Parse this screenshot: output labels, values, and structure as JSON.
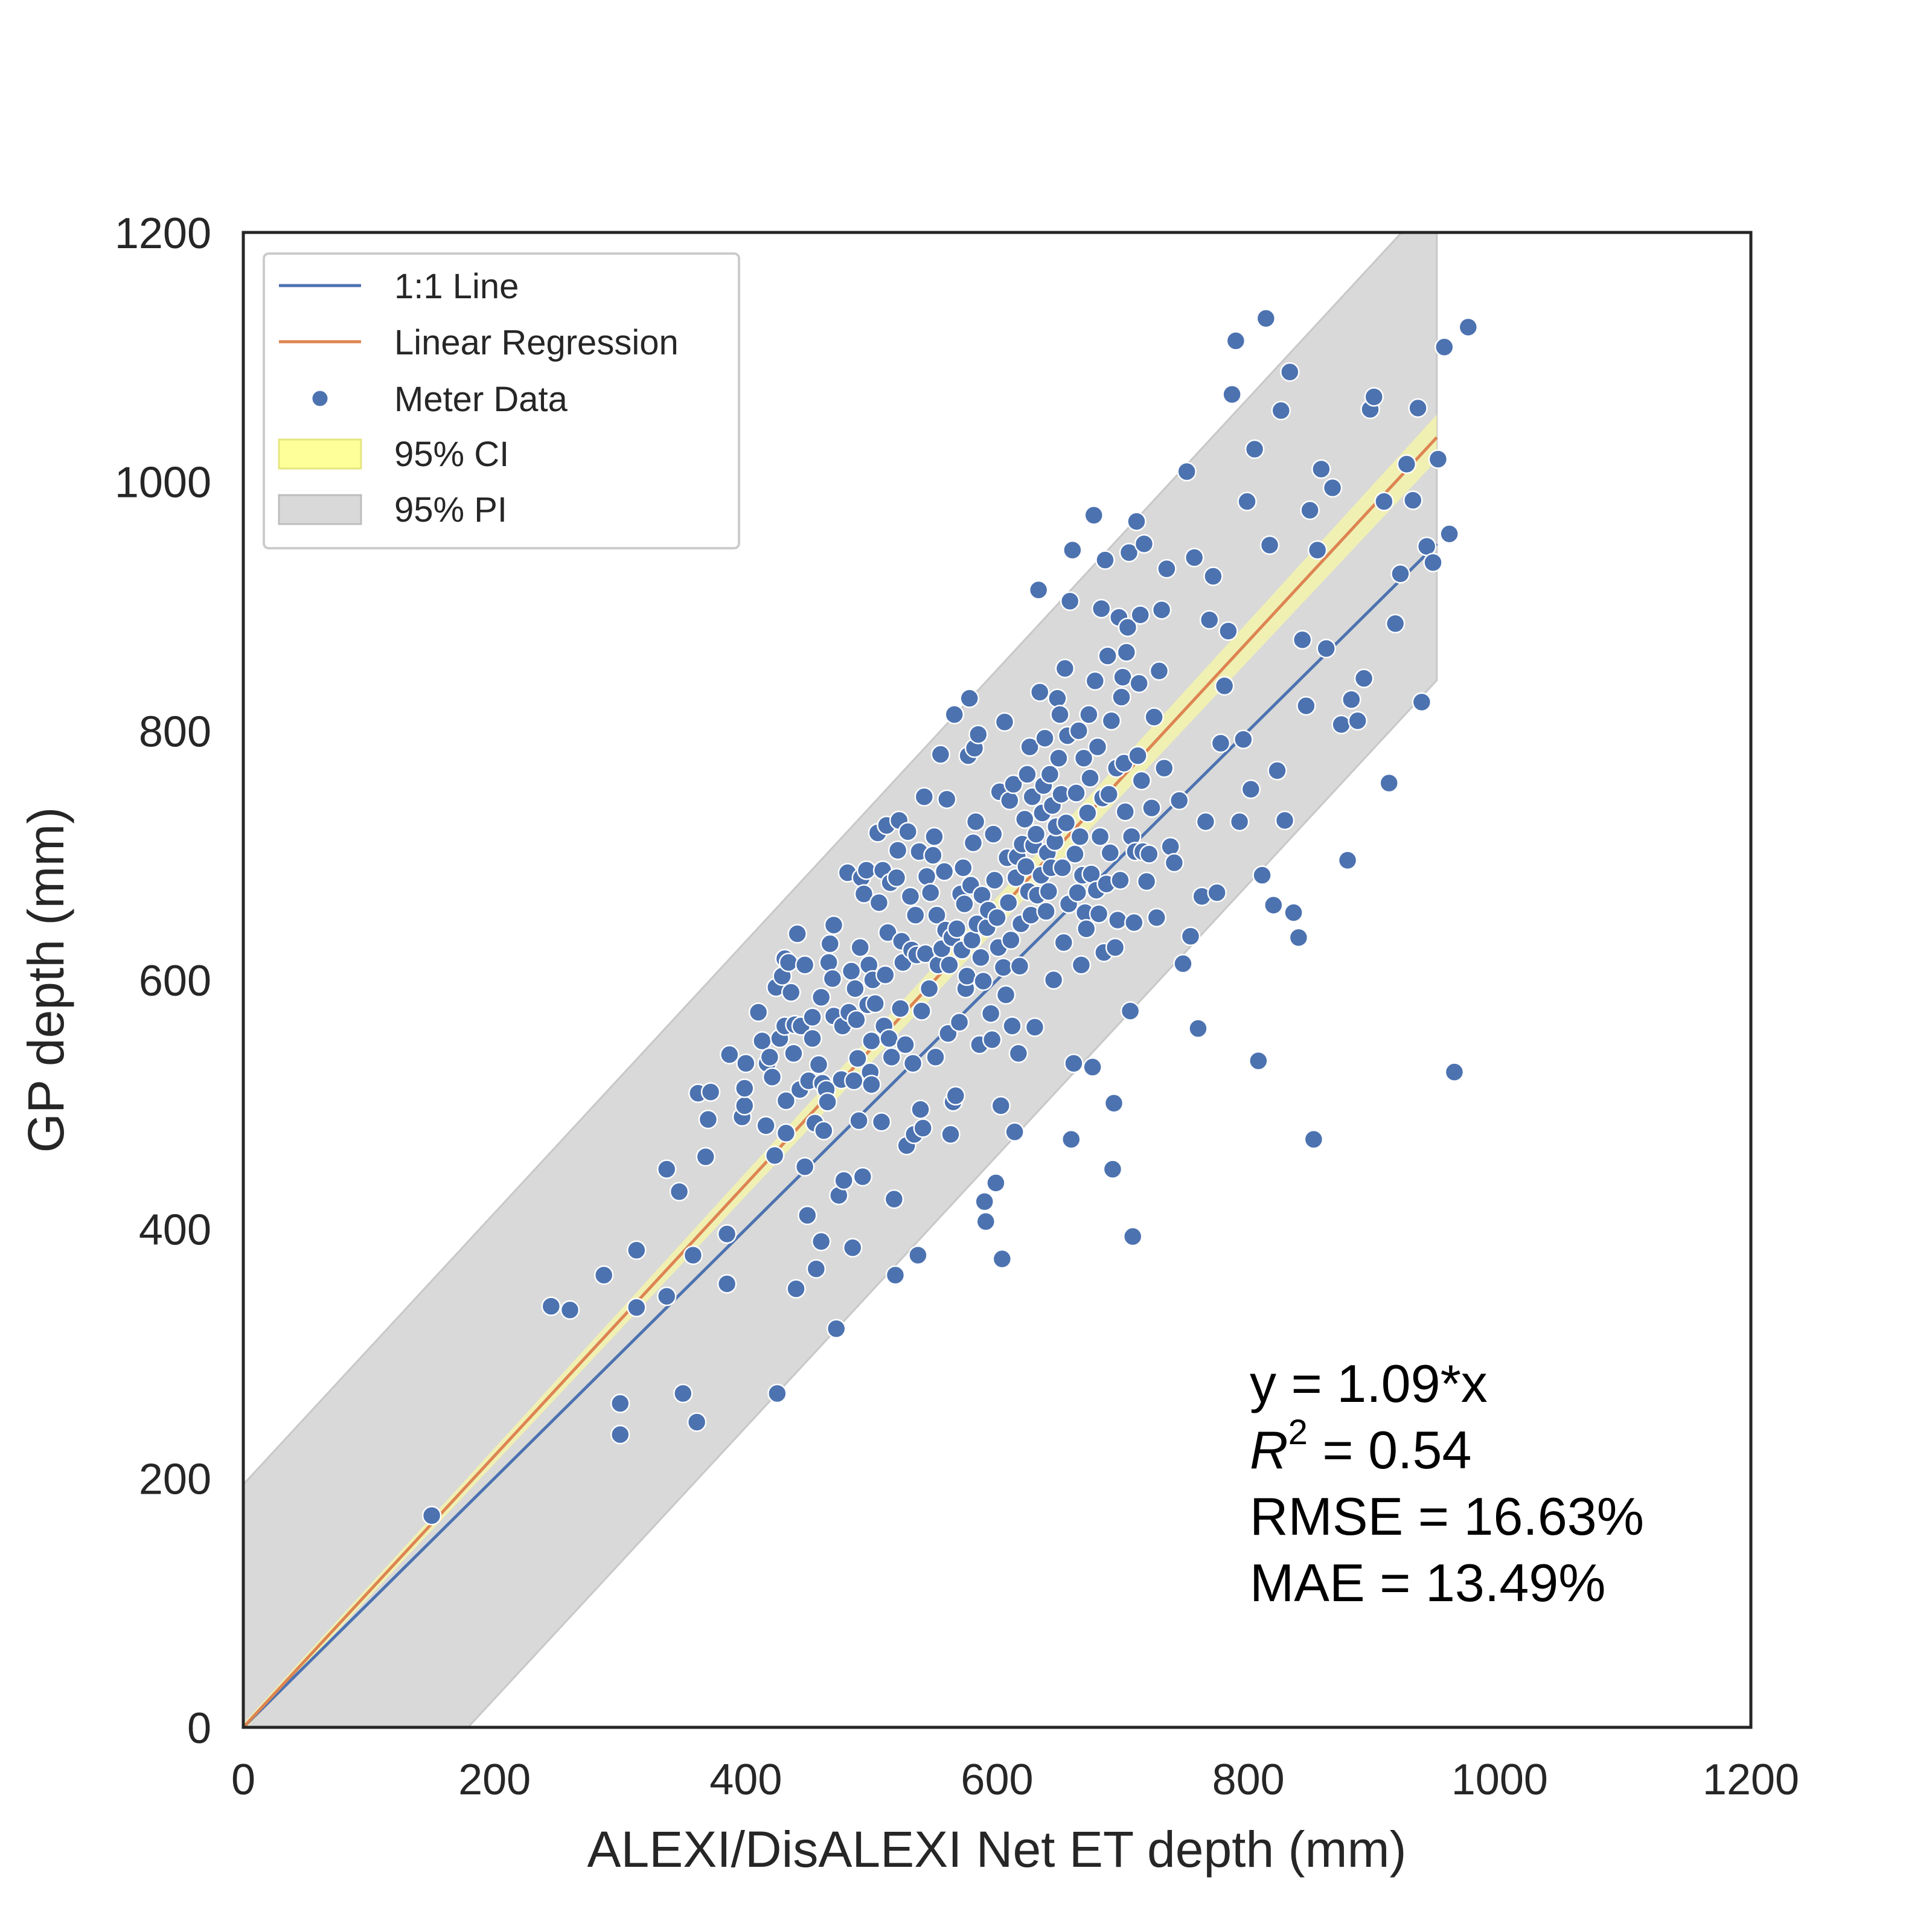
{
  "chart_data": {
    "type": "scatter",
    "xlabel": "ALEXI/DisALEXI Net ET depth (mm)",
    "ylabel": "GP depth (mm)",
    "xlim": [
      0,
      1200
    ],
    "ylim": [
      0,
      1200
    ],
    "xticks": [
      "0",
      "200",
      "400",
      "600",
      "800",
      "1000",
      "1200"
    ],
    "yticks": [
      "0",
      "200",
      "400",
      "600",
      "800",
      "1000",
      "1200"
    ],
    "grid": false,
    "legend": {
      "placement": "top-left",
      "entries": [
        "1:1 Line",
        "Linear Regression",
        "Meter Data",
        "95% CI",
        "95% PI"
      ]
    },
    "colors": {
      "one_to_one": "#4c72b0",
      "regression": "#dd8452",
      "points": "#4c72b0",
      "ci": "#ffff99",
      "pi": "#d9d9d9"
    },
    "one_to_one_line": {
      "x": [
        0,
        950
      ],
      "y": [
        0,
        950
      ]
    },
    "regression_line": {
      "slope": 1.09,
      "x": [
        0,
        950
      ]
    },
    "prediction_interval_halfwidth": 195,
    "annotations": {
      "equation": "y = 1.09*x",
      "r2_prefix": "R",
      "r2_sup": "2",
      "r2_value": " = 0.54",
      "rmse": "RMSE = 16.63%",
      "mae": "MAE = 13.49%"
    },
    "points": [
      [
        150,
        170
      ],
      [
        245,
        338
      ],
      [
        260,
        335
      ],
      [
        287,
        363
      ],
      [
        300,
        260
      ],
      [
        300,
        235
      ],
      [
        313,
        383
      ],
      [
        313,
        337
      ],
      [
        337,
        448
      ],
      [
        337,
        346
      ],
      [
        347,
        430
      ],
      [
        350,
        268
      ],
      [
        358,
        379
      ],
      [
        361,
        245
      ],
      [
        362,
        509
      ],
      [
        368,
        458
      ],
      [
        370,
        488
      ],
      [
        372,
        510
      ],
      [
        385,
        396
      ],
      [
        385,
        356
      ],
      [
        387,
        540
      ],
      [
        397,
        490
      ],
      [
        399,
        499
      ],
      [
        399,
        513
      ],
      [
        400,
        533
      ],
      [
        410,
        574
      ],
      [
        413,
        551
      ],
      [
        416,
        483
      ],
      [
        417,
        533
      ],
      [
        419,
        538
      ],
      [
        421,
        522
      ],
      [
        423,
        459
      ],
      [
        424,
        594
      ],
      [
        425,
        268
      ],
      [
        427,
        553
      ],
      [
        429,
        603
      ],
      [
        431,
        617
      ],
      [
        431,
        563
      ],
      [
        432,
        503
      ],
      [
        432,
        477
      ],
      [
        434,
        614
      ],
      [
        436,
        590
      ],
      [
        438,
        541
      ],
      [
        439,
        564
      ],
      [
        440,
        352
      ],
      [
        441,
        637
      ],
      [
        443,
        512
      ],
      [
        444,
        563
      ],
      [
        447,
        450
      ],
      [
        447,
        612
      ],
      [
        449,
        411
      ],
      [
        450,
        519
      ],
      [
        453,
        570
      ],
      [
        453,
        553
      ],
      [
        455,
        485
      ],
      [
        456,
        368
      ],
      [
        458,
        532
      ],
      [
        460,
        586
      ],
      [
        460,
        390
      ],
      [
        461,
        517
      ],
      [
        462,
        479
      ],
      [
        464,
        512
      ],
      [
        465,
        502
      ],
      [
        466,
        614
      ],
      [
        467,
        629
      ],
      [
        469,
        601
      ],
      [
        470,
        644
      ],
      [
        470,
        571
      ],
      [
        472,
        320
      ],
      [
        474,
        427
      ],
      [
        476,
        520
      ],
      [
        477,
        563
      ],
      [
        478,
        439
      ],
      [
        481,
        686
      ],
      [
        482,
        574
      ],
      [
        484,
        607
      ],
      [
        485,
        385
      ],
      [
        486,
        519
      ],
      [
        487,
        593
      ],
      [
        488,
        568
      ],
      [
        489,
        537
      ],
      [
        490,
        487
      ],
      [
        491,
        626
      ],
      [
        492,
        682
      ],
      [
        493,
        442
      ],
      [
        494,
        669
      ],
      [
        496,
        688
      ],
      [
        497,
        580
      ],
      [
        498,
        612
      ],
      [
        499,
        526
      ],
      [
        500,
        551
      ],
      [
        500,
        516
      ],
      [
        501,
        600
      ],
      [
        503,
        581
      ],
      [
        505,
        718
      ],
      [
        506,
        662
      ],
      [
        508,
        486
      ],
      [
        509,
        688
      ],
      [
        510,
        563
      ],
      [
        511,
        604
      ],
      [
        512,
        724
      ],
      [
        513,
        638
      ],
      [
        514,
        553
      ],
      [
        515,
        678
      ],
      [
        516,
        538
      ],
      [
        518,
        424
      ],
      [
        519,
        363
      ],
      [
        520,
        682
      ],
      [
        521,
        704
      ],
      [
        522,
        728
      ],
      [
        523,
        577
      ],
      [
        524,
        631
      ],
      [
        525,
        614
      ],
      [
        527,
        548
      ],
      [
        528,
        467
      ],
      [
        529,
        719
      ],
      [
        531,
        667
      ],
      [
        532,
        624
      ],
      [
        533,
        533
      ],
      [
        534,
        476
      ],
      [
        535,
        652
      ],
      [
        536,
        620
      ],
      [
        537,
        379
      ],
      [
        538,
        703
      ],
      [
        539,
        496
      ],
      [
        540,
        575
      ],
      [
        541,
        481
      ],
      [
        542,
        747
      ],
      [
        543,
        621
      ],
      [
        544,
        683
      ],
      [
        546,
        593
      ],
      [
        547,
        670
      ],
      [
        549,
        700
      ],
      [
        550,
        715
      ],
      [
        551,
        538
      ],
      [
        552,
        652
      ],
      [
        553,
        612
      ],
      [
        555,
        781
      ],
      [
        556,
        625
      ],
      [
        558,
        687
      ],
      [
        559,
        640
      ],
      [
        560,
        745
      ],
      [
        561,
        557
      ],
      [
        562,
        612
      ],
      [
        563,
        476
      ],
      [
        564,
        634
      ],
      [
        565,
        502
      ],
      [
        566,
        813
      ],
      [
        567,
        507
      ],
      [
        568,
        641
      ],
      [
        570,
        566
      ],
      [
        571,
        669
      ],
      [
        572,
        624
      ],
      [
        573,
        690
      ],
      [
        574,
        661
      ],
      [
        575,
        593
      ],
      [
        576,
        603
      ],
      [
        577,
        780
      ],
      [
        578,
        826
      ],
      [
        579,
        676
      ],
      [
        580,
        632
      ],
      [
        581,
        710
      ],
      [
        582,
        786
      ],
      [
        583,
        727
      ],
      [
        584,
        645
      ],
      [
        585,
        797
      ],
      [
        586,
        548
      ],
      [
        587,
        618
      ],
      [
        588,
        668
      ],
      [
        589,
        599
      ],
      [
        590,
        422
      ],
      [
        591,
        406
      ],
      [
        592,
        642
      ],
      [
        593,
        656
      ],
      [
        595,
        573
      ],
      [
        596,
        552
      ],
      [
        597,
        717
      ],
      [
        598,
        680
      ],
      [
        599,
        437
      ],
      [
        600,
        650
      ],
      [
        601,
        626
      ],
      [
        602,
        751
      ],
      [
        603,
        499
      ],
      [
        604,
        376
      ],
      [
        605,
        610
      ],
      [
        606,
        807
      ],
      [
        607,
        588
      ],
      [
        608,
        698
      ],
      [
        609,
        662
      ],
      [
        610,
        744
      ],
      [
        611,
        632
      ],
      [
        612,
        563
      ],
      [
        613,
        757
      ],
      [
        614,
        478
      ],
      [
        615,
        682
      ],
      [
        616,
        699
      ],
      [
        617,
        541
      ],
      [
        618,
        611
      ],
      [
        619,
        645
      ],
      [
        620,
        709
      ],
      [
        622,
        729
      ],
      [
        623,
        691
      ],
      [
        624,
        765
      ],
      [
        625,
        671
      ],
      [
        626,
        787
      ],
      [
        627,
        652
      ],
      [
        628,
        747
      ],
      [
        629,
        708
      ],
      [
        630,
        562
      ],
      [
        631,
        717
      ],
      [
        632,
        668
      ],
      [
        633,
        913
      ],
      [
        634,
        831
      ],
      [
        635,
        684
      ],
      [
        636,
        734
      ],
      [
        637,
        756
      ],
      [
        638,
        794
      ],
      [
        639,
        655
      ],
      [
        640,
        702
      ],
      [
        641,
        671
      ],
      [
        642,
        765
      ],
      [
        643,
        690
      ],
      [
        644,
        740
      ],
      [
        645,
        600
      ],
      [
        646,
        711
      ],
      [
        647,
        723
      ],
      [
        648,
        826
      ],
      [
        649,
        778
      ],
      [
        650,
        813
      ],
      [
        651,
        749
      ],
      [
        652,
        690
      ],
      [
        653,
        630
      ],
      [
        654,
        850
      ],
      [
        655,
        726
      ],
      [
        656,
        796
      ],
      [
        657,
        661
      ],
      [
        658,
        904
      ],
      [
        659,
        472
      ],
      [
        660,
        945
      ],
      [
        661,
        533
      ],
      [
        662,
        701
      ],
      [
        663,
        750
      ],
      [
        664,
        670
      ],
      [
        665,
        800
      ],
      [
        666,
        715
      ],
      [
        667,
        612
      ],
      [
        668,
        684
      ],
      [
        669,
        778
      ],
      [
        670,
        654
      ],
      [
        671,
        641
      ],
      [
        672,
        734
      ],
      [
        673,
        813
      ],
      [
        674,
        762
      ],
      [
        675,
        685
      ],
      [
        676,
        530
      ],
      [
        677,
        973
      ],
      [
        678,
        840
      ],
      [
        679,
        672
      ],
      [
        680,
        787
      ],
      [
        681,
        653
      ],
      [
        682,
        715
      ],
      [
        683,
        898
      ],
      [
        684,
        746
      ],
      [
        685,
        622
      ],
      [
        686,
        937
      ],
      [
        687,
        677
      ],
      [
        688,
        860
      ],
      [
        689,
        749
      ],
      [
        690,
        702
      ],
      [
        691,
        808
      ],
      [
        692,
        448
      ],
      [
        693,
        501
      ],
      [
        694,
        626
      ],
      [
        695,
        770
      ],
      [
        696,
        648
      ],
      [
        697,
        891
      ],
      [
        698,
        680
      ],
      [
        699,
        827
      ],
      [
        700,
        843
      ],
      [
        701,
        774
      ],
      [
        702,
        735
      ],
      [
        703,
        863
      ],
      [
        704,
        883
      ],
      [
        705,
        943
      ],
      [
        706,
        575
      ],
      [
        707,
        715
      ],
      [
        708,
        394
      ],
      [
        709,
        646
      ],
      [
        710,
        703
      ],
      [
        711,
        968
      ],
      [
        712,
        780
      ],
      [
        713,
        838
      ],
      [
        714,
        893
      ],
      [
        715,
        760
      ],
      [
        716,
        703
      ],
      [
        717,
        950
      ],
      [
        719,
        679
      ],
      [
        721,
        701
      ],
      [
        723,
        738
      ],
      [
        725,
        811
      ],
      [
        727,
        650
      ],
      [
        729,
        848
      ],
      [
        731,
        897
      ],
      [
        733,
        770
      ],
      [
        735,
        930
      ],
      [
        738,
        707
      ],
      [
        741,
        694
      ],
      [
        745,
        744
      ],
      [
        748,
        613
      ],
      [
        751,
        1008
      ],
      [
        754,
        635
      ],
      [
        757,
        939
      ],
      [
        760,
        561
      ],
      [
        763,
        667
      ],
      [
        766,
        727
      ],
      [
        769,
        889
      ],
      [
        772,
        924
      ],
      [
        775,
        670
      ],
      [
        778,
        790
      ],
      [
        781,
        836
      ],
      [
        784,
        880
      ],
      [
        787,
        1070
      ],
      [
        790,
        1113
      ],
      [
        793,
        727
      ],
      [
        796,
        793
      ],
      [
        799,
        984
      ],
      [
        802,
        753
      ],
      [
        805,
        1026
      ],
      [
        808,
        535
      ],
      [
        811,
        684
      ],
      [
        814,
        1131
      ],
      [
        817,
        949
      ],
      [
        820,
        660
      ],
      [
        823,
        768
      ],
      [
        826,
        1057
      ],
      [
        829,
        728
      ],
      [
        833,
        1088
      ],
      [
        836,
        654
      ],
      [
        840,
        634
      ],
      [
        843,
        873
      ],
      [
        846,
        820
      ],
      [
        849,
        977
      ],
      [
        852,
        472
      ],
      [
        855,
        945
      ],
      [
        858,
        1010
      ],
      [
        862,
        866
      ],
      [
        867,
        995
      ],
      [
        874,
        805
      ],
      [
        879,
        696
      ],
      [
        882,
        825
      ],
      [
        887,
        808
      ],
      [
        892,
        842
      ],
      [
        897,
        1058
      ],
      [
        900,
        1068
      ],
      [
        908,
        984
      ],
      [
        912,
        758
      ],
      [
        917,
        886
      ],
      [
        921,
        926
      ],
      [
        926,
        1014
      ],
      [
        931,
        985
      ],
      [
        935,
        1059
      ],
      [
        938,
        823
      ],
      [
        942,
        948
      ],
      [
        947,
        935
      ],
      [
        951,
        1018
      ],
      [
        956,
        1108
      ],
      [
        960,
        958
      ],
      [
        964,
        526
      ],
      [
        975,
        1124
      ]
    ]
  }
}
